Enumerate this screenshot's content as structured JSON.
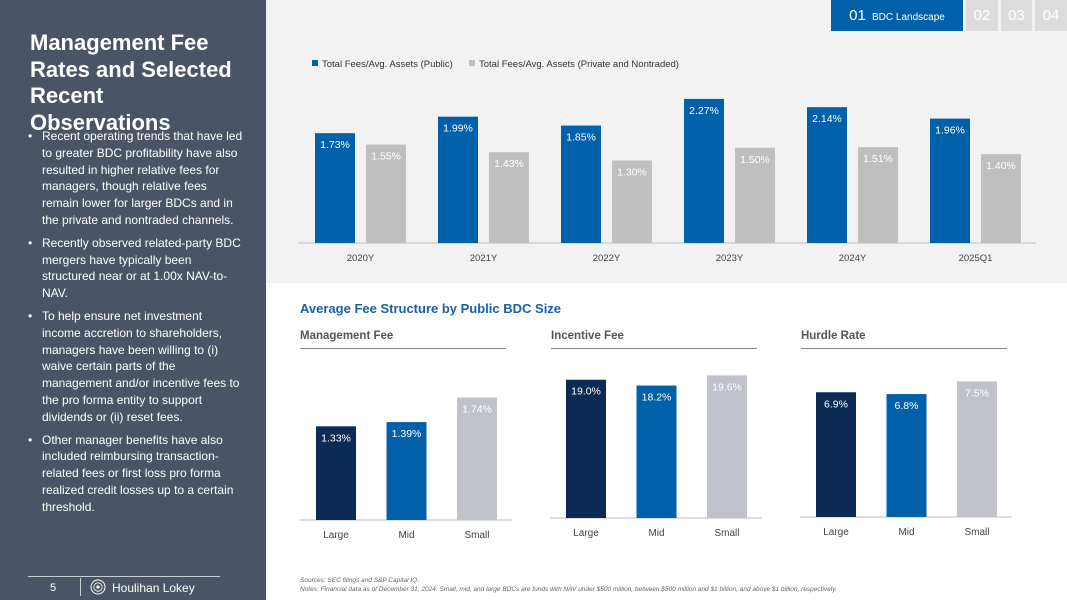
{
  "sidebar": {
    "title": "Management Fee Rates and Selected Recent Observations",
    "bullets": [
      "Recent operating trends that have led to greater BDC profitability have also resulted in higher relative fees for managers, though relative fees remain lower for larger BDCs and in the private and nontraded channels.",
      "Recently observed related-party BDC mergers have typically been structured near or at 1.00x NAV-to-NAV.",
      "To help ensure net investment income accretion to shareholders, managers have been willing to (i) waive certain parts of the management and/or incentive fees to the pro forma entity to support dividends or (ii) reset fees.",
      "Other manager benefits have also included reimbursing transaction-related fees or first loss pro forma realized credit losses up to a certain threshold."
    ],
    "page_number": "5",
    "logo_text": "Houlihan Lokey"
  },
  "tabs": {
    "active_number": "01",
    "active_label": "BDC Landscape",
    "others": [
      "02",
      "03",
      "04"
    ]
  },
  "colors": {
    "public": "#0060a9",
    "private": "#bfbfbf",
    "large": "#0b2a54",
    "mid": "#0060a9",
    "small": "#bfc3c9",
    "sidebar": "#4b5466"
  },
  "section_title": "Average Fee Structure by Public BDC Size",
  "chart_data": [
    {
      "type": "bar",
      "title": "",
      "categories": [
        "2020Y",
        "2021Y",
        "2022Y",
        "2023Y",
        "2024Y",
        "2025Q1"
      ],
      "series": [
        {
          "name": "Total Fees/Avg. Assets (Public)",
          "values": [
            1.73,
            1.99,
            1.85,
            2.27,
            2.14,
            1.96
          ],
          "labels": [
            "1.73%",
            "1.99%",
            "1.85%",
            "2.27%",
            "2.14%",
            "1.96%"
          ]
        },
        {
          "name": "Total Fees/Avg. Assets (Private and Nontraded)",
          "values": [
            1.55,
            1.43,
            1.3,
            1.5,
            1.51,
            1.4
          ],
          "labels": [
            "1.55%",
            "1.43%",
            "1.30%",
            "1.50%",
            "1.51%",
            "1.40%"
          ]
        }
      ],
      "xlabel": "",
      "ylabel": "",
      "ylim": [
        0,
        2.3
      ],
      "legend": "top-left"
    },
    {
      "type": "bar",
      "title": "Management Fee",
      "categories": [
        "Large",
        "Mid",
        "Small"
      ],
      "values": [
        1.33,
        1.39,
        1.74
      ],
      "labels": [
        "1.33%",
        "1.39%",
        "1.74%"
      ],
      "ylim": [
        0,
        2.3
      ]
    },
    {
      "type": "bar",
      "title": "Incentive Fee",
      "categories": [
        "Large",
        "Mid",
        "Small"
      ],
      "values": [
        19.0,
        18.2,
        19.6
      ],
      "labels": [
        "19.0%",
        "18.2%",
        "19.6%"
      ],
      "ylim": [
        0,
        20.2
      ]
    },
    {
      "type": "bar",
      "title": "Hurdle Rate",
      "categories": [
        "Large",
        "Mid",
        "Small"
      ],
      "values": [
        6.9,
        6.8,
        7.5
      ],
      "labels": [
        "6.9%",
        "6.8%",
        "7.5%"
      ],
      "ylim": [
        0,
        7.8
      ]
    }
  ],
  "sources": "Sources: SEC filings and S&P Capital IQ.",
  "notes": "Notes: Financial data as of December 31, 2024. Small, mid, and large BDCs are funds with NAV under $500 million, between $500 million and $1 billion, and above $1 billion, respectively."
}
